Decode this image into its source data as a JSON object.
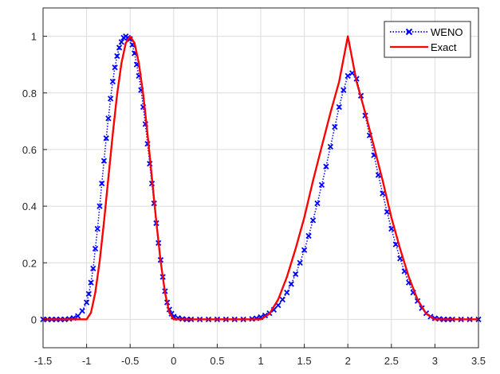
{
  "chart_data": {
    "type": "line",
    "title": "",
    "xlabel": "",
    "ylabel": "",
    "xlim": [
      -1.5,
      3.5
    ],
    "ylim": [
      -0.1,
      1.1
    ],
    "xticks": [
      "-1.5",
      "-1",
      "-0.5",
      "0",
      "0.5",
      "1",
      "1.5",
      "2",
      "2.5",
      "3",
      "3.5"
    ],
    "yticks": [
      "0",
      "0.2",
      "0.4",
      "0.6",
      "0.8",
      "1"
    ],
    "grid": true,
    "legend_position": "top-right",
    "series": [
      {
        "name": "WENO",
        "style": "dotted line with x markers",
        "color": "#0000ff",
        "x": [
          -1.5,
          -1.45,
          -1.4,
          -1.35,
          -1.3,
          -1.25,
          -1.2,
          -1.15,
          -1.1,
          -1.05,
          -1.0,
          -0.975,
          -0.95,
          -0.925,
          -0.9,
          -0.875,
          -0.85,
          -0.825,
          -0.8,
          -0.775,
          -0.75,
          -0.725,
          -0.7,
          -0.675,
          -0.65,
          -0.625,
          -0.6,
          -0.575,
          -0.55,
          -0.525,
          -0.5,
          -0.475,
          -0.45,
          -0.425,
          -0.4,
          -0.375,
          -0.35,
          -0.325,
          -0.3,
          -0.275,
          -0.25,
          -0.225,
          -0.2,
          -0.175,
          -0.15,
          -0.125,
          -0.1,
          -0.075,
          -0.05,
          -0.025,
          0.0,
          0.05,
          0.1,
          0.15,
          0.2,
          0.3,
          0.4,
          0.5,
          0.6,
          0.7,
          0.8,
          0.9,
          0.95,
          1.0,
          1.05,
          1.1,
          1.15,
          1.2,
          1.25,
          1.3,
          1.35,
          1.4,
          1.45,
          1.5,
          1.55,
          1.6,
          1.65,
          1.7,
          1.75,
          1.8,
          1.85,
          1.9,
          1.95,
          2.0,
          2.05,
          2.1,
          2.15,
          2.2,
          2.25,
          2.3,
          2.35,
          2.4,
          2.45,
          2.5,
          2.55,
          2.6,
          2.65,
          2.7,
          2.75,
          2.8,
          2.85,
          2.9,
          2.95,
          3.0,
          3.05,
          3.1,
          3.15,
          3.2,
          3.3,
          3.4,
          3.5
        ],
        "y": [
          0.0,
          0.0,
          0.0,
          0.0,
          0.0,
          0.0,
          0.002,
          0.005,
          0.012,
          0.03,
          0.06,
          0.09,
          0.13,
          0.18,
          0.25,
          0.32,
          0.4,
          0.48,
          0.56,
          0.64,
          0.71,
          0.78,
          0.84,
          0.89,
          0.93,
          0.96,
          0.98,
          0.995,
          1.0,
          0.995,
          0.99,
          0.97,
          0.94,
          0.9,
          0.86,
          0.81,
          0.75,
          0.69,
          0.62,
          0.55,
          0.48,
          0.41,
          0.34,
          0.27,
          0.21,
          0.15,
          0.1,
          0.06,
          0.035,
          0.02,
          0.01,
          0.005,
          0.002,
          0.0,
          0.0,
          0.0,
          0.0,
          0.0,
          0.0,
          0.0,
          0.0,
          0.002,
          0.004,
          0.008,
          0.014,
          0.022,
          0.034,
          0.05,
          0.07,
          0.095,
          0.125,
          0.16,
          0.2,
          0.245,
          0.295,
          0.35,
          0.41,
          0.475,
          0.54,
          0.61,
          0.68,
          0.75,
          0.81,
          0.86,
          0.87,
          0.85,
          0.79,
          0.72,
          0.65,
          0.58,
          0.51,
          0.445,
          0.38,
          0.32,
          0.265,
          0.215,
          0.17,
          0.13,
          0.095,
          0.065,
          0.04,
          0.022,
          0.01,
          0.004,
          0.002,
          0.0,
          0.0,
          0.0,
          0.0,
          0.0,
          0.0
        ]
      },
      {
        "name": "Exact",
        "style": "solid line",
        "color": "#ff0000",
        "x": [
          -1.5,
          -1.0,
          -0.95,
          -0.9,
          -0.85,
          -0.8,
          -0.75,
          -0.7,
          -0.65,
          -0.6,
          -0.55,
          -0.5,
          -0.45,
          -0.4,
          -0.35,
          -0.3,
          -0.25,
          -0.2,
          -0.15,
          -0.1,
          -0.05,
          0.0,
          1.0,
          1.1,
          1.2,
          1.3,
          1.4,
          1.5,
          1.6,
          1.7,
          1.8,
          1.9,
          2.0,
          2.1,
          2.2,
          2.3,
          2.4,
          2.5,
          2.6,
          2.7,
          2.8,
          2.9,
          3.0,
          3.5
        ],
        "y": [
          0.0,
          0.0,
          0.024,
          0.095,
          0.206,
          0.345,
          0.5,
          0.655,
          0.794,
          0.905,
          0.976,
          1.0,
          0.976,
          0.905,
          0.794,
          0.655,
          0.5,
          0.345,
          0.206,
          0.095,
          0.024,
          0.0,
          0.0,
          0.02,
          0.07,
          0.15,
          0.25,
          0.36,
          0.49,
          0.61,
          0.73,
          0.84,
          1.0,
          0.84,
          0.73,
          0.61,
          0.49,
          0.36,
          0.25,
          0.15,
          0.07,
          0.02,
          0.0,
          0.0
        ]
      }
    ]
  }
}
